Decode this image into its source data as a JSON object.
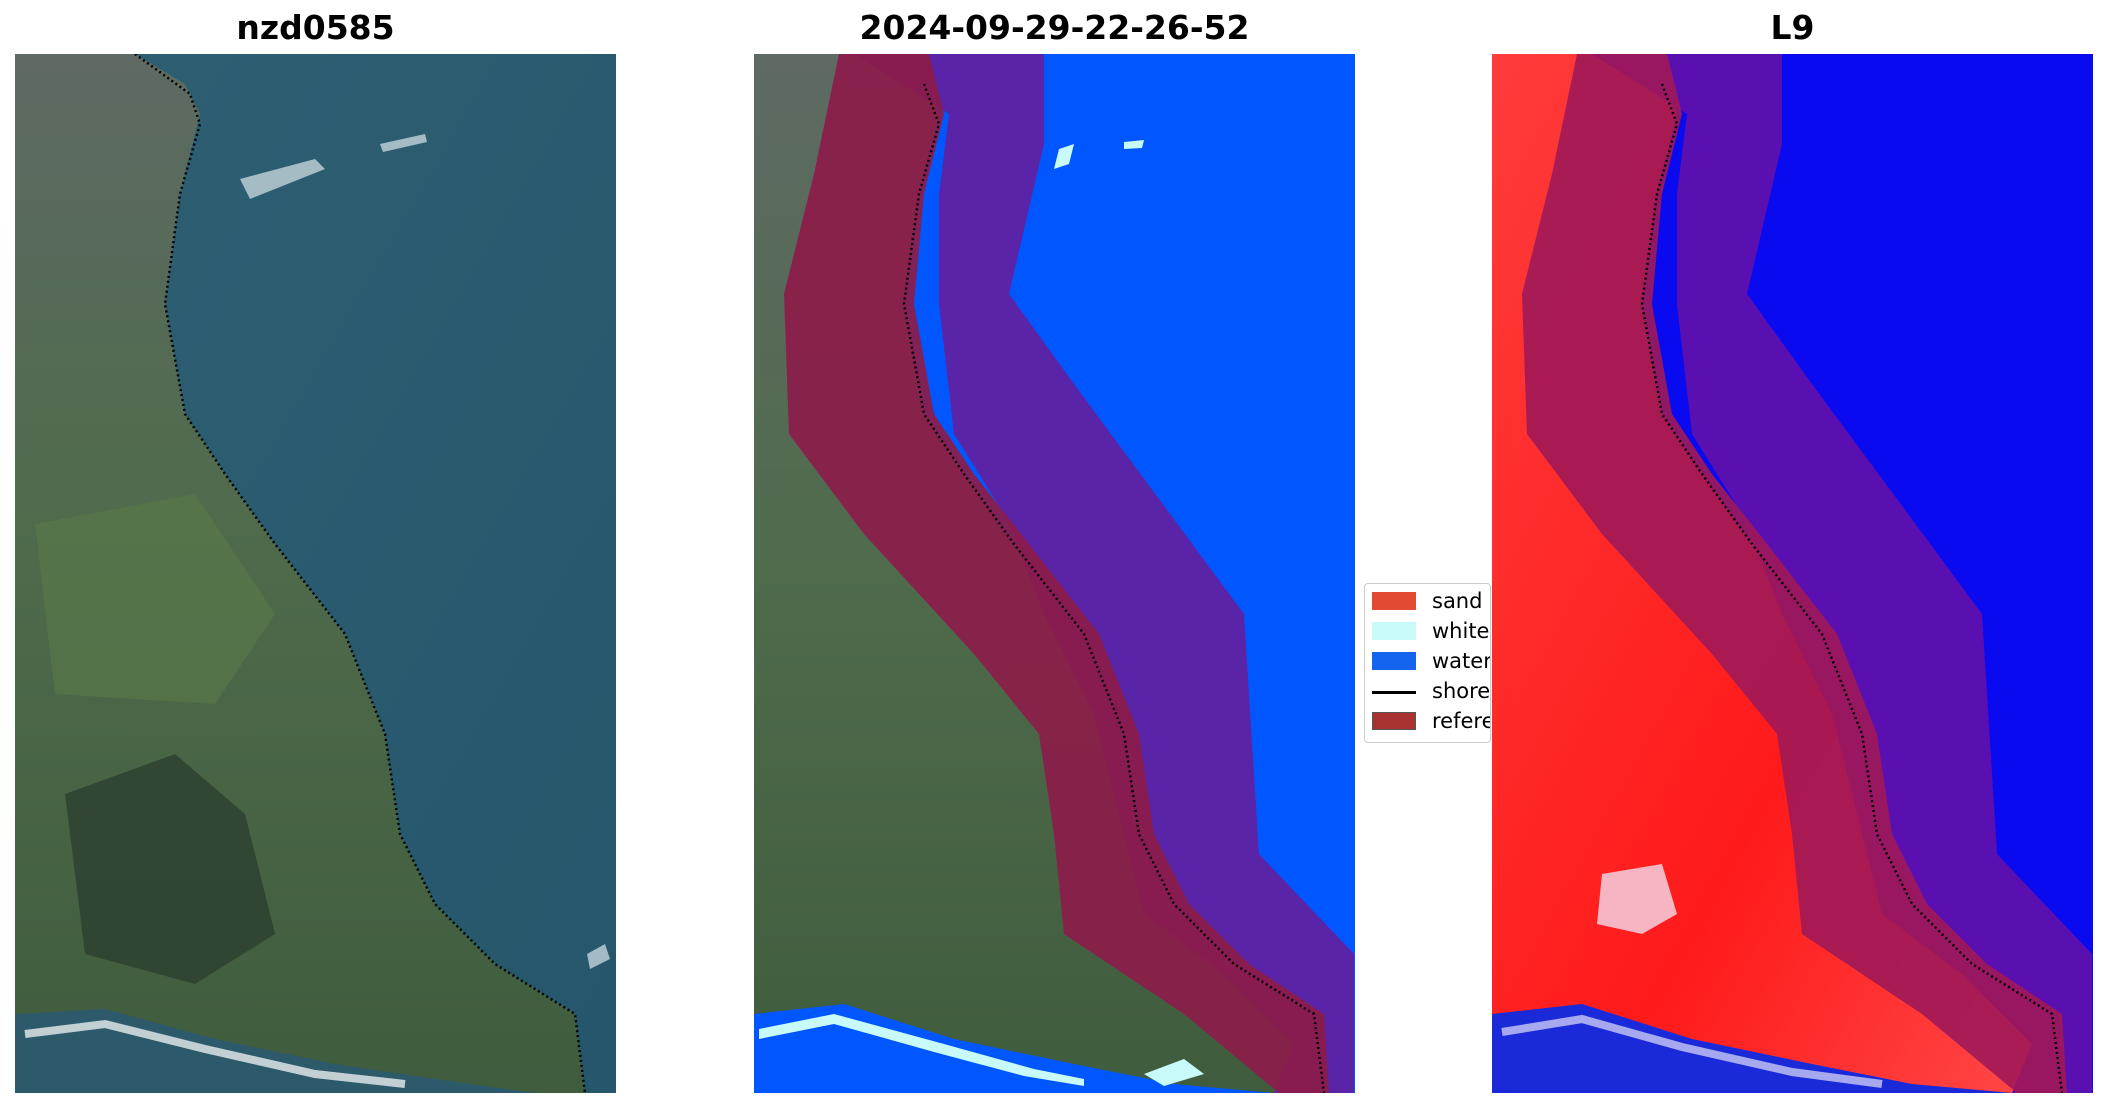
{
  "titles": {
    "site": "nzd0585",
    "date": "2024-09-29-22-26-52",
    "satellite": "L9"
  },
  "legend": {
    "items": [
      {
        "label": "sand",
        "color": "#e34a33"
      },
      {
        "label": "whitewater",
        "color": "#c8fafa"
      },
      {
        "label": "water",
        "color": "#1464f0"
      },
      {
        "label": "shoreline",
        "color": "#000000"
      },
      {
        "label": "reference shoreline buffer",
        "color": "#a83232"
      }
    ]
  },
  "colors": {
    "ocean": "#2a5b6e",
    "land": "#4d6e4a",
    "town": "#6c7570",
    "water_class": "#0057ff",
    "buffer_red": "#8c1c4a",
    "buffer_purple": "#5a24a8",
    "index_red": "#ff2020",
    "index_blue": "#0a0af0"
  }
}
